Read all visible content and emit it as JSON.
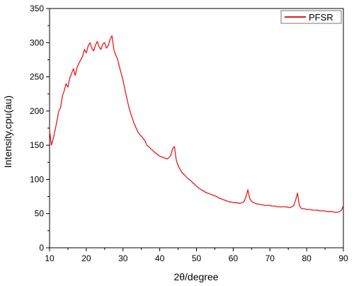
{
  "chart_data": {
    "type": "line",
    "xlabel": "2θ/degree",
    "ylabel": "Intensity,cpu(au)",
    "xlim": [
      10,
      90
    ],
    "ylim": [
      0,
      350
    ],
    "xticks": [
      "10",
      "20",
      "30",
      "40",
      "50",
      "60",
      "70",
      "80",
      "90"
    ],
    "yticks": [
      "0",
      "50",
      "100",
      "150",
      "200",
      "250",
      "300",
      "350"
    ],
    "grid": false,
    "legend_position": "top-right",
    "series": [
      {
        "name": "PFSR",
        "color": "#e41a1c",
        "points": [
          [
            10,
            172
          ],
          [
            10.5,
            150
          ],
          [
            11,
            160
          ],
          [
            11.5,
            172
          ],
          [
            12,
            185
          ],
          [
            12.5,
            200
          ],
          [
            13,
            205
          ],
          [
            13.5,
            222
          ],
          [
            14,
            230
          ],
          [
            14.5,
            240
          ],
          [
            15,
            235
          ],
          [
            15.5,
            248
          ],
          [
            16,
            255
          ],
          [
            16.5,
            262
          ],
          [
            17,
            252
          ],
          [
            17.5,
            264
          ],
          [
            18,
            270
          ],
          [
            18.5,
            275
          ],
          [
            19,
            280
          ],
          [
            19.5,
            290
          ],
          [
            20,
            285
          ],
          [
            20.5,
            295
          ],
          [
            21,
            300
          ],
          [
            21.5,
            292
          ],
          [
            22,
            288
          ],
          [
            22.5,
            296
          ],
          [
            23,
            302
          ],
          [
            23.5,
            294
          ],
          [
            24,
            290
          ],
          [
            24.5,
            298
          ],
          [
            25,
            300
          ],
          [
            25.5,
            292
          ],
          [
            26,
            296
          ],
          [
            26.5,
            305
          ],
          [
            27,
            310
          ],
          [
            27.5,
            290
          ],
          [
            28,
            282
          ],
          [
            28.5,
            276
          ],
          [
            29,
            265
          ],
          [
            29.5,
            255
          ],
          [
            30,
            245
          ],
          [
            30.5,
            232
          ],
          [
            31,
            220
          ],
          [
            31.5,
            208
          ],
          [
            32,
            198
          ],
          [
            32.5,
            190
          ],
          [
            33,
            182
          ],
          [
            33.5,
            176
          ],
          [
            34,
            170
          ],
          [
            34.5,
            166
          ],
          [
            35,
            163
          ],
          [
            35.5,
            160
          ],
          [
            36,
            156
          ],
          [
            36.5,
            150
          ],
          [
            37,
            148
          ],
          [
            37.5,
            145
          ],
          [
            38,
            143
          ],
          [
            38.5,
            140
          ],
          [
            39,
            138
          ],
          [
            39.5,
            136
          ],
          [
            40,
            134
          ],
          [
            40.5,
            133
          ],
          [
            41,
            132
          ],
          [
            41.5,
            131
          ],
          [
            42,
            130
          ],
          [
            42.5,
            132
          ],
          [
            43,
            135
          ],
          [
            43.5,
            145
          ],
          [
            44,
            148
          ],
          [
            44.5,
            128
          ],
          [
            45,
            120
          ],
          [
            45.5,
            115
          ],
          [
            46,
            110
          ],
          [
            46.5,
            108
          ],
          [
            47,
            105
          ],
          [
            47.5,
            102
          ],
          [
            48,
            100
          ],
          [
            48.5,
            98
          ],
          [
            49,
            95
          ],
          [
            49.5,
            93
          ],
          [
            50,
            90
          ],
          [
            50.5,
            88
          ],
          [
            51,
            86
          ],
          [
            51.5,
            84
          ],
          [
            52,
            83
          ],
          [
            52.5,
            81
          ],
          [
            53,
            80
          ],
          [
            53.5,
            79
          ],
          [
            54,
            78
          ],
          [
            54.5,
            77
          ],
          [
            55,
            76
          ],
          [
            55.5,
            75
          ],
          [
            56,
            73
          ],
          [
            56.5,
            72
          ],
          [
            57,
            71
          ],
          [
            57.5,
            70
          ],
          [
            58,
            69
          ],
          [
            58.5,
            68
          ],
          [
            59,
            67
          ],
          [
            59.5,
            67
          ],
          [
            60,
            66
          ],
          [
            60.5,
            66
          ],
          [
            61,
            66
          ],
          [
            61.5,
            65
          ],
          [
            62,
            65
          ],
          [
            62.5,
            66
          ],
          [
            63,
            68
          ],
          [
            63.5,
            75
          ],
          [
            64,
            85
          ],
          [
            64.5,
            72
          ],
          [
            65,
            68
          ],
          [
            65.5,
            66
          ],
          [
            66,
            65
          ],
          [
            66.5,
            64
          ],
          [
            67,
            64
          ],
          [
            67.5,
            63
          ],
          [
            68,
            63
          ],
          [
            68.5,
            62
          ],
          [
            69,
            62
          ],
          [
            69.5,
            62
          ],
          [
            70,
            62
          ],
          [
            70.5,
            61
          ],
          [
            71,
            61
          ],
          [
            71.5,
            61
          ],
          [
            72,
            60
          ],
          [
            72.5,
            60
          ],
          [
            73,
            60
          ],
          [
            73.5,
            60
          ],
          [
            74,
            60
          ],
          [
            74.5,
            60
          ],
          [
            75,
            59
          ],
          [
            75.5,
            59
          ],
          [
            76,
            60
          ],
          [
            76.5,
            62
          ],
          [
            77,
            70
          ],
          [
            77.5,
            80
          ],
          [
            78,
            62
          ],
          [
            78.5,
            58
          ],
          [
            79,
            57
          ],
          [
            79.5,
            57
          ],
          [
            80,
            56
          ],
          [
            80.5,
            56
          ],
          [
            81,
            56
          ],
          [
            81.5,
            55
          ],
          [
            82,
            55
          ],
          [
            82.5,
            55
          ],
          [
            83,
            55
          ],
          [
            83.5,
            54
          ],
          [
            84,
            54
          ],
          [
            84.5,
            54
          ],
          [
            85,
            54
          ],
          [
            85.5,
            53
          ],
          [
            86,
            53
          ],
          [
            86.5,
            53
          ],
          [
            87,
            53
          ],
          [
            87.5,
            52
          ],
          [
            88,
            52
          ],
          [
            88.5,
            52
          ],
          [
            89,
            53
          ],
          [
            89.5,
            55
          ],
          [
            90,
            62
          ]
        ]
      }
    ]
  }
}
